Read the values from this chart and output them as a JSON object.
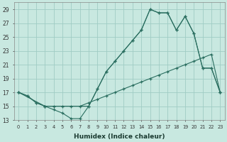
{
  "xlabel": "Humidex (Indice chaleur)",
  "xlim": [
    -0.5,
    23.5
  ],
  "ylim": [
    13,
    30
  ],
  "yticks": [
    13,
    15,
    17,
    19,
    21,
    23,
    25,
    27,
    29
  ],
  "xticks": [
    0,
    1,
    2,
    3,
    4,
    5,
    6,
    7,
    8,
    9,
    10,
    11,
    12,
    13,
    14,
    15,
    16,
    17,
    18,
    19,
    20,
    21,
    22,
    23
  ],
  "bg_color": "#c8e8e0",
  "grid_color": "#a0ccc4",
  "line_color": "#2a6e60",
  "line1_x": [
    0,
    1,
    2,
    3,
    4,
    5,
    6,
    7,
    8,
    9,
    10,
    11,
    12,
    13,
    14,
    15,
    16,
    17,
    18,
    19,
    20,
    21,
    22,
    23
  ],
  "line1_y": [
    17,
    16.5,
    15.5,
    15,
    14.5,
    14,
    13.2,
    13.2,
    15,
    17.5,
    20,
    21.5,
    23,
    24.5,
    26,
    29,
    28.5,
    28.5,
    26,
    28,
    25.5,
    20.5,
    20.5,
    17
  ],
  "line2_x": [
    0,
    1,
    2,
    3,
    4,
    5,
    6,
    7,
    8,
    9,
    10,
    11,
    12,
    13,
    14,
    15,
    16,
    17,
    18,
    19,
    20,
    21,
    22,
    23
  ],
  "line2_y": [
    17,
    16.5,
    15.5,
    15,
    15,
    15,
    15,
    15,
    15.5,
    16,
    16.5,
    17,
    17.5,
    18,
    18.5,
    19,
    19.5,
    20,
    20.5,
    21,
    21.5,
    22,
    22.5,
    17
  ],
  "line3_x": [
    0,
    3,
    8,
    9,
    10,
    11,
    12,
    13,
    14,
    15,
    16,
    17,
    18,
    19,
    20,
    21,
    22,
    23
  ],
  "line3_y": [
    17,
    15,
    15,
    17.5,
    20,
    21.5,
    23,
    24.5,
    26,
    29,
    28.5,
    28.5,
    26,
    28,
    25.5,
    20.5,
    20.5,
    17
  ]
}
